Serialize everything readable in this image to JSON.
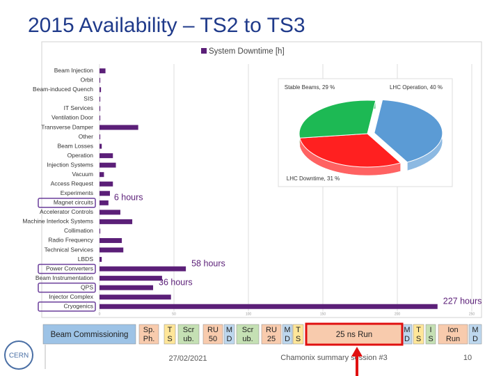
{
  "title": "2015 Availability – TS2 to TS3",
  "chart_data": [
    {
      "type": "hbar",
      "legend": "System Downtime [h]",
      "color": "#5b1f78",
      "categories": [
        "Beam Injection",
        "Orbit",
        "Beam-induced Quench",
        "SIS",
        "IT Services",
        "Ventilation Door",
        "Transverse Damper",
        "Other",
        "Beam Losses",
        "Operation",
        "Injection Systems",
        "Vacuum",
        "Access Request",
        "Experiments",
        "Magnet circuits",
        "Accelerator Controls",
        "Machine Interlock Systems",
        "Collimation",
        "Radio Frequency",
        "Technical Services",
        "LBDS",
        "Power Converters",
        "Beam Instrumentation",
        "QPS",
        "Injector Complex",
        "Cryogenics"
      ],
      "values": [
        4,
        0.5,
        1,
        0.5,
        0.5,
        0.5,
        26,
        0.5,
        1.5,
        9,
        11,
        3,
        9,
        7,
        6,
        14,
        22,
        0.5,
        15,
        16,
        1.5,
        58,
        42,
        36,
        48,
        227
      ],
      "xlim": [
        0,
        250
      ],
      "xticks": [
        0,
        50,
        100,
        150,
        200,
        250
      ],
      "grid": true,
      "annotations": [
        {
          "category": "Magnet circuits",
          "text": "6 hours"
        },
        {
          "category": "Power Converters",
          "text": "58 hours"
        },
        {
          "category": "QPS",
          "text": "36 hours"
        },
        {
          "category": "Cryogenics",
          "text": "227 hours"
        }
      ]
    },
    {
      "type": "pie",
      "labels": [
        "LHC Operation, 40 %",
        "LHC Downtime, 31 %",
        "Stable Beams, 29 %"
      ],
      "values": [
        40,
        31,
        29
      ],
      "colors": [
        "#5b9bd5",
        "#ff2020",
        "#1db954"
      ]
    }
  ],
  "timeline": [
    {
      "label": "Beam Commissioning",
      "color": "#9dc3e6"
    },
    {
      "label": "Sp. Ph.",
      "color": "#f8cbad"
    },
    {
      "label": "T S",
      "color": "#ffe699"
    },
    {
      "label": "Scr ub.",
      "color": "#c5e0b4"
    },
    {
      "label": "RU 50",
      "color": "#f8cbad"
    },
    {
      "label": "M D",
      "color": "#bdd7ee"
    },
    {
      "label": "Scr ub.",
      "color": "#c5e0b4"
    },
    {
      "label": "RU 25",
      "color": "#f8cbad"
    },
    {
      "label": "M D",
      "color": "#bdd7ee"
    },
    {
      "label": "T S",
      "color": "#ffe699"
    },
    {
      "label": "25 ns Run",
      "color": "#f8cbad"
    },
    {
      "label": "M D",
      "color": "#bdd7ee"
    },
    {
      "label": "T S",
      "color": "#ffe699"
    },
    {
      "label": "I S",
      "color": "#c5e0b4"
    },
    {
      "label": "Ion Run",
      "color": "#f8cbad"
    },
    {
      "label": "M D",
      "color": "#bdd7ee"
    }
  ],
  "footer": {
    "date": "27/02/2021",
    "session": "Chamonix summary session #3",
    "page": "10"
  }
}
